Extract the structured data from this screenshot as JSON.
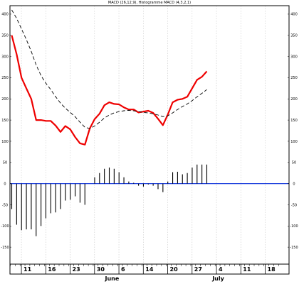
{
  "chart_data": {
    "type": "line",
    "title": "MACD (26,12,9), Histogramme MACD (4,3,2,1)",
    "xlabel": "",
    "ylabel": "",
    "ylim": [
      -190,
      420
    ],
    "y_ticks_left": [
      -150,
      -100,
      -50,
      0,
      50,
      100,
      150,
      200,
      250,
      300,
      350,
      400
    ],
    "y_ticks_right": [
      -150,
      -100,
      -50,
      0,
      50,
      100,
      150,
      200,
      250,
      300,
      350,
      400
    ],
    "x_tick_labels": [
      {
        "index": 3,
        "label": "11"
      },
      {
        "index": 8,
        "label": "16"
      },
      {
        "index": 13,
        "label": "23"
      },
      {
        "index": 18,
        "label": "30"
      },
      {
        "index": 23,
        "label": "6"
      },
      {
        "index": 28,
        "label": "14"
      },
      {
        "index": 33,
        "label": "20"
      },
      {
        "index": 38,
        "label": "27"
      },
      {
        "index": 43,
        "label": "4"
      },
      {
        "index": 48,
        "label": "11"
      },
      {
        "index": 53,
        "label": "18"
      }
    ],
    "month_labels": [
      {
        "index": 20,
        "label": "June"
      },
      {
        "index": 42,
        "label": "July"
      }
    ],
    "grid": true,
    "zero_line": true,
    "series": [
      {
        "name": "",
        "style": "solid",
        "color": "#ee0000",
        "values": [
          350,
          305,
          250,
          225,
          200,
          150,
          150,
          148,
          148,
          137,
          122,
          136,
          128,
          110,
          95,
          92,
          130,
          152,
          165,
          185,
          192,
          188,
          187,
          180,
          175,
          175,
          168,
          170,
          172,
          167,
          153,
          138,
          163,
          192,
          198,
          200,
          205,
          225,
          245,
          252,
          265
        ]
      },
      {
        "name": "",
        "style": "dashed",
        "color": "#000000",
        "values": [
          410,
          390,
          365,
          340,
          312,
          280,
          255,
          237,
          222,
          205,
          190,
          178,
          168,
          158,
          145,
          133,
          130,
          136,
          145,
          155,
          162,
          167,
          170,
          172,
          173,
          172,
          170,
          168,
          167,
          165,
          162,
          158,
          160,
          167,
          175,
          182,
          188,
          196,
          205,
          213,
          222
        ]
      },
      {
        "name": "",
        "style": "histogram",
        "color": "#000000",
        "values": [
          -60,
          -97,
          -110,
          -108,
          -108,
          -124,
          -100,
          -82,
          -70,
          -68,
          -60,
          -40,
          -38,
          -30,
          -45,
          -50,
          0,
          15,
          25,
          35,
          38,
          35,
          27,
          15,
          5,
          2,
          -5,
          -7,
          -2,
          -5,
          -13,
          -20,
          5,
          27,
          28,
          22,
          25,
          38,
          45,
          45,
          45
        ]
      }
    ]
  }
}
